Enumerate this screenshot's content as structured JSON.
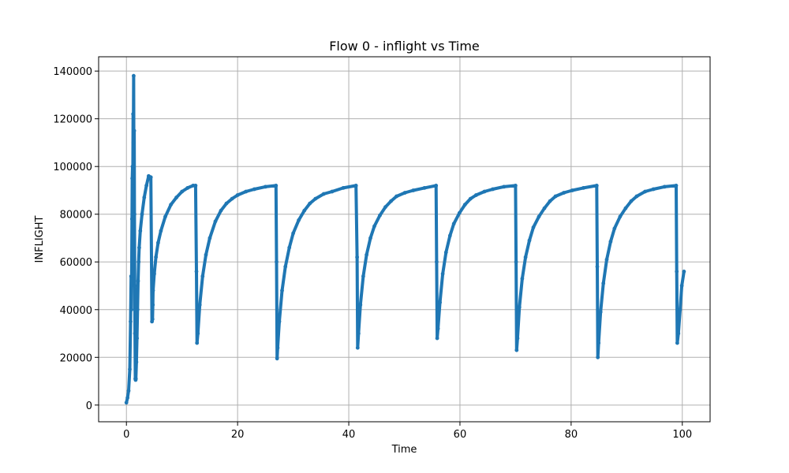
{
  "chart_data": {
    "type": "line",
    "title": "Flow 0 - inflight vs Time",
    "xlabel": "Time",
    "ylabel": "INFLIGHT",
    "xlim": [
      -5,
      105
    ],
    "ylim": [
      -7000,
      146000
    ],
    "xticks": [
      0,
      20,
      40,
      60,
      80,
      100
    ],
    "yticks": [
      0,
      20000,
      40000,
      60000,
      80000,
      100000,
      120000,
      140000
    ],
    "grid": true,
    "series": [
      {
        "color": "#1f77b4",
        "x": [
          0.0,
          0.2,
          0.4,
          0.6,
          0.75,
          0.85,
          0.9,
          1.0,
          1.05,
          1.1,
          1.15,
          1.2,
          1.25,
          1.3,
          1.35,
          1.4,
          1.45,
          1.5,
          1.55,
          1.6,
          1.65,
          1.7,
          1.8,
          1.9,
          2.0,
          2.1,
          2.2,
          2.3,
          2.5,
          2.8,
          3.2,
          3.6,
          4.0,
          4.4,
          4.6,
          4.7,
          4.75,
          4.8,
          5.0,
          5.3,
          5.7,
          6.2,
          7.0,
          8.0,
          9.0,
          10.0,
          11.0,
          12.0,
          12.45,
          12.6,
          12.7,
          12.85,
          13.2,
          13.7,
          14.3,
          15.0,
          16.0,
          17.0,
          18.0,
          19.0,
          20.0,
          21.5,
          23.0,
          25.0,
          26.9,
          27.0,
          27.1,
          27.2,
          27.5,
          28.0,
          28.6,
          29.3,
          30.0,
          31.0,
          32.0,
          33.0,
          34.0,
          35.5,
          37.0,
          39.0,
          41.3,
          41.5,
          41.6,
          41.75,
          42.1,
          42.6,
          43.2,
          43.9,
          44.6,
          45.6,
          46.6,
          47.6,
          48.6,
          50.1,
          51.6,
          53.6,
          55.7,
          55.8,
          55.9,
          56.05,
          56.4,
          56.9,
          57.5,
          58.2,
          58.9,
          59.9,
          60.9,
          61.9,
          62.9,
          64.4,
          65.9,
          67.9,
          70.0,
          70.1,
          70.2,
          70.35,
          70.7,
          71.2,
          71.8,
          72.5,
          73.2,
          74.2,
          75.2,
          76.2,
          77.2,
          78.7,
          80.2,
          82.2,
          84.6,
          84.7,
          84.8,
          84.95,
          85.3,
          85.8,
          86.4,
          87.1,
          87.8,
          88.8,
          89.8,
          90.8,
          91.8,
          93.3,
          94.8,
          96.8,
          98.9,
          99.0,
          99.1,
          99.3,
          99.6,
          99.9,
          100.3
        ],
        "values": [
          1000,
          3000,
          6000,
          15000,
          35000,
          54000,
          40000,
          78000,
          95000,
          100000,
          92000,
          122000,
          110000,
          138000,
          100000,
          115000,
          80000,
          50000,
          30000,
          11000,
          10500,
          11000,
          18000,
          28000,
          40000,
          52000,
          60000,
          66000,
          73000,
          80000,
          87000,
          92000,
          96000,
          95500,
          35000,
          36000,
          42000,
          48000,
          55000,
          62000,
          68000,
          73000,
          79000,
          84000,
          87000,
          89500,
          91000,
          92000,
          92000,
          56000,
          26000,
          30000,
          42000,
          54000,
          63000,
          70000,
          77000,
          81500,
          84500,
          86500,
          88000,
          89500,
          90500,
          91500,
          92000,
          60000,
          19500,
          24000,
          35000,
          48000,
          58000,
          66000,
          72000,
          77500,
          81500,
          84500,
          86500,
          88500,
          89500,
          91000,
          92000,
          62000,
          24000,
          30000,
          42000,
          54000,
          63000,
          70000,
          75000,
          79500,
          83000,
          85500,
          87500,
          89000,
          90000,
          91000,
          92000,
          60000,
          28000,
          32000,
          43000,
          55000,
          64000,
          71000,
          76000,
          80500,
          84000,
          86500,
          88000,
          89500,
          90500,
          91500,
          92000,
          60000,
          23000,
          28000,
          41000,
          53000,
          62000,
          69000,
          74500,
          79000,
          82500,
          85500,
          87500,
          89000,
          90000,
          91000,
          92000,
          58000,
          20000,
          26000,
          39000,
          51000,
          61000,
          68500,
          74000,
          79000,
          82500,
          85500,
          87500,
          89500,
          90500,
          91500,
          92000,
          56000,
          26000,
          30000,
          40000,
          50000,
          56000
        ]
      }
    ]
  }
}
